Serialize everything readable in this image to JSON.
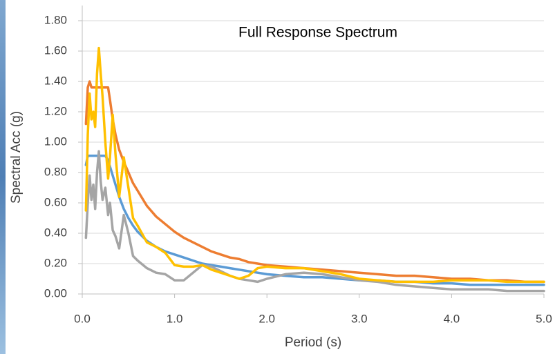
{
  "chart_data": {
    "type": "line",
    "title": "Full Response Spectrum",
    "x_label": "Period (s)",
    "y_label": "Spectral Acc (g)",
    "x": [
      0.04,
      0.06,
      0.08,
      0.1,
      0.12,
      0.14,
      0.16,
      0.18,
      0.2,
      0.22,
      0.25,
      0.28,
      0.3,
      0.33,
      0.36,
      0.4,
      0.45,
      0.5,
      0.55,
      0.6,
      0.7,
      0.8,
      0.9,
      1.0,
      1.1,
      1.2,
      1.3,
      1.4,
      1.5,
      1.6,
      1.7,
      1.8,
      1.9,
      2.0,
      2.2,
      2.4,
      2.6,
      2.8,
      3.0,
      3.2,
      3.4,
      3.6,
      3.8,
      4.0,
      4.2,
      4.4,
      4.6,
      4.8,
      5.0
    ],
    "series": [
      {
        "color": "#5B9BD5",
        "values": [
          0.85,
          0.91,
          0.91,
          0.91,
          0.91,
          0.91,
          0.91,
          0.91,
          0.91,
          0.91,
          0.91,
          0.88,
          0.84,
          0.78,
          0.72,
          0.64,
          0.56,
          0.5,
          0.45,
          0.41,
          0.35,
          0.31,
          0.28,
          0.26,
          0.24,
          0.22,
          0.2,
          0.19,
          0.18,
          0.17,
          0.16,
          0.15,
          0.14,
          0.13,
          0.12,
          0.11,
          0.11,
          0.1,
          0.09,
          0.09,
          0.08,
          0.08,
          0.07,
          0.07,
          0.06,
          0.06,
          0.06,
          0.06,
          0.06
        ]
      },
      {
        "color": "#ED7D31",
        "values": [
          1.12,
          1.36,
          1.4,
          1.36,
          1.36,
          1.36,
          1.36,
          1.36,
          1.36,
          1.36,
          1.36,
          1.36,
          1.28,
          1.15,
          1.05,
          0.95,
          0.87,
          0.8,
          0.73,
          0.68,
          0.58,
          0.51,
          0.46,
          0.41,
          0.37,
          0.34,
          0.31,
          0.28,
          0.26,
          0.24,
          0.23,
          0.21,
          0.2,
          0.19,
          0.18,
          0.17,
          0.16,
          0.15,
          0.14,
          0.13,
          0.12,
          0.12,
          0.11,
          0.1,
          0.1,
          0.09,
          0.09,
          0.08,
          0.08
        ]
      },
      {
        "color": "#A5A5A5",
        "values": [
          0.37,
          0.6,
          0.78,
          0.62,
          0.72,
          0.56,
          0.8,
          0.94,
          0.74,
          0.62,
          0.7,
          0.52,
          0.6,
          0.42,
          0.38,
          0.3,
          0.52,
          0.4,
          0.25,
          0.22,
          0.17,
          0.14,
          0.13,
          0.09,
          0.09,
          0.14,
          0.19,
          0.18,
          0.15,
          0.12,
          0.1,
          0.09,
          0.08,
          0.1,
          0.13,
          0.14,
          0.13,
          0.11,
          0.09,
          0.08,
          0.06,
          0.05,
          0.04,
          0.03,
          0.03,
          0.03,
          0.02,
          0.02,
          0.02
        ]
      },
      {
        "color": "#FFC000",
        "values": [
          0.55,
          1.05,
          1.32,
          1.15,
          1.2,
          1.1,
          1.45,
          1.62,
          1.45,
          1.3,
          1.0,
          0.76,
          0.9,
          1.18,
          0.92,
          0.64,
          0.9,
          0.7,
          0.5,
          0.45,
          0.34,
          0.31,
          0.27,
          0.19,
          0.18,
          0.18,
          0.19,
          0.16,
          0.14,
          0.12,
          0.1,
          0.12,
          0.17,
          0.18,
          0.17,
          0.17,
          0.15,
          0.13,
          0.1,
          0.09,
          0.08,
          0.08,
          0.08,
          0.09,
          0.09,
          0.09,
          0.08,
          0.08,
          0.08
        ]
      }
    ],
    "xlim": [
      0,
      5
    ],
    "xticks": [
      {
        "value": 0,
        "label": "0.0"
      },
      {
        "value": 1,
        "label": "1.0"
      },
      {
        "value": 2,
        "label": "2.0"
      },
      {
        "value": 3,
        "label": "3.0"
      },
      {
        "value": 4,
        "label": "4.0"
      },
      {
        "value": 5,
        "label": "5.0"
      }
    ],
    "ylim": [
      0,
      1.8
    ],
    "yticks": [
      {
        "value": 0,
        "label": "0.00"
      },
      {
        "value": 0.2,
        "label": "0.20"
      },
      {
        "value": 0.4,
        "label": "0.40"
      },
      {
        "value": 0.6,
        "label": "0.60"
      },
      {
        "value": 0.8,
        "label": "0.80"
      },
      {
        "value": 1,
        "label": "1.00"
      },
      {
        "value": 1.2,
        "label": "1.20"
      },
      {
        "value": 1.4,
        "label": "1.40"
      },
      {
        "value": 1.6,
        "label": "1.60"
      },
      {
        "value": 1.8,
        "label": "1.80"
      }
    ],
    "grid": true
  }
}
